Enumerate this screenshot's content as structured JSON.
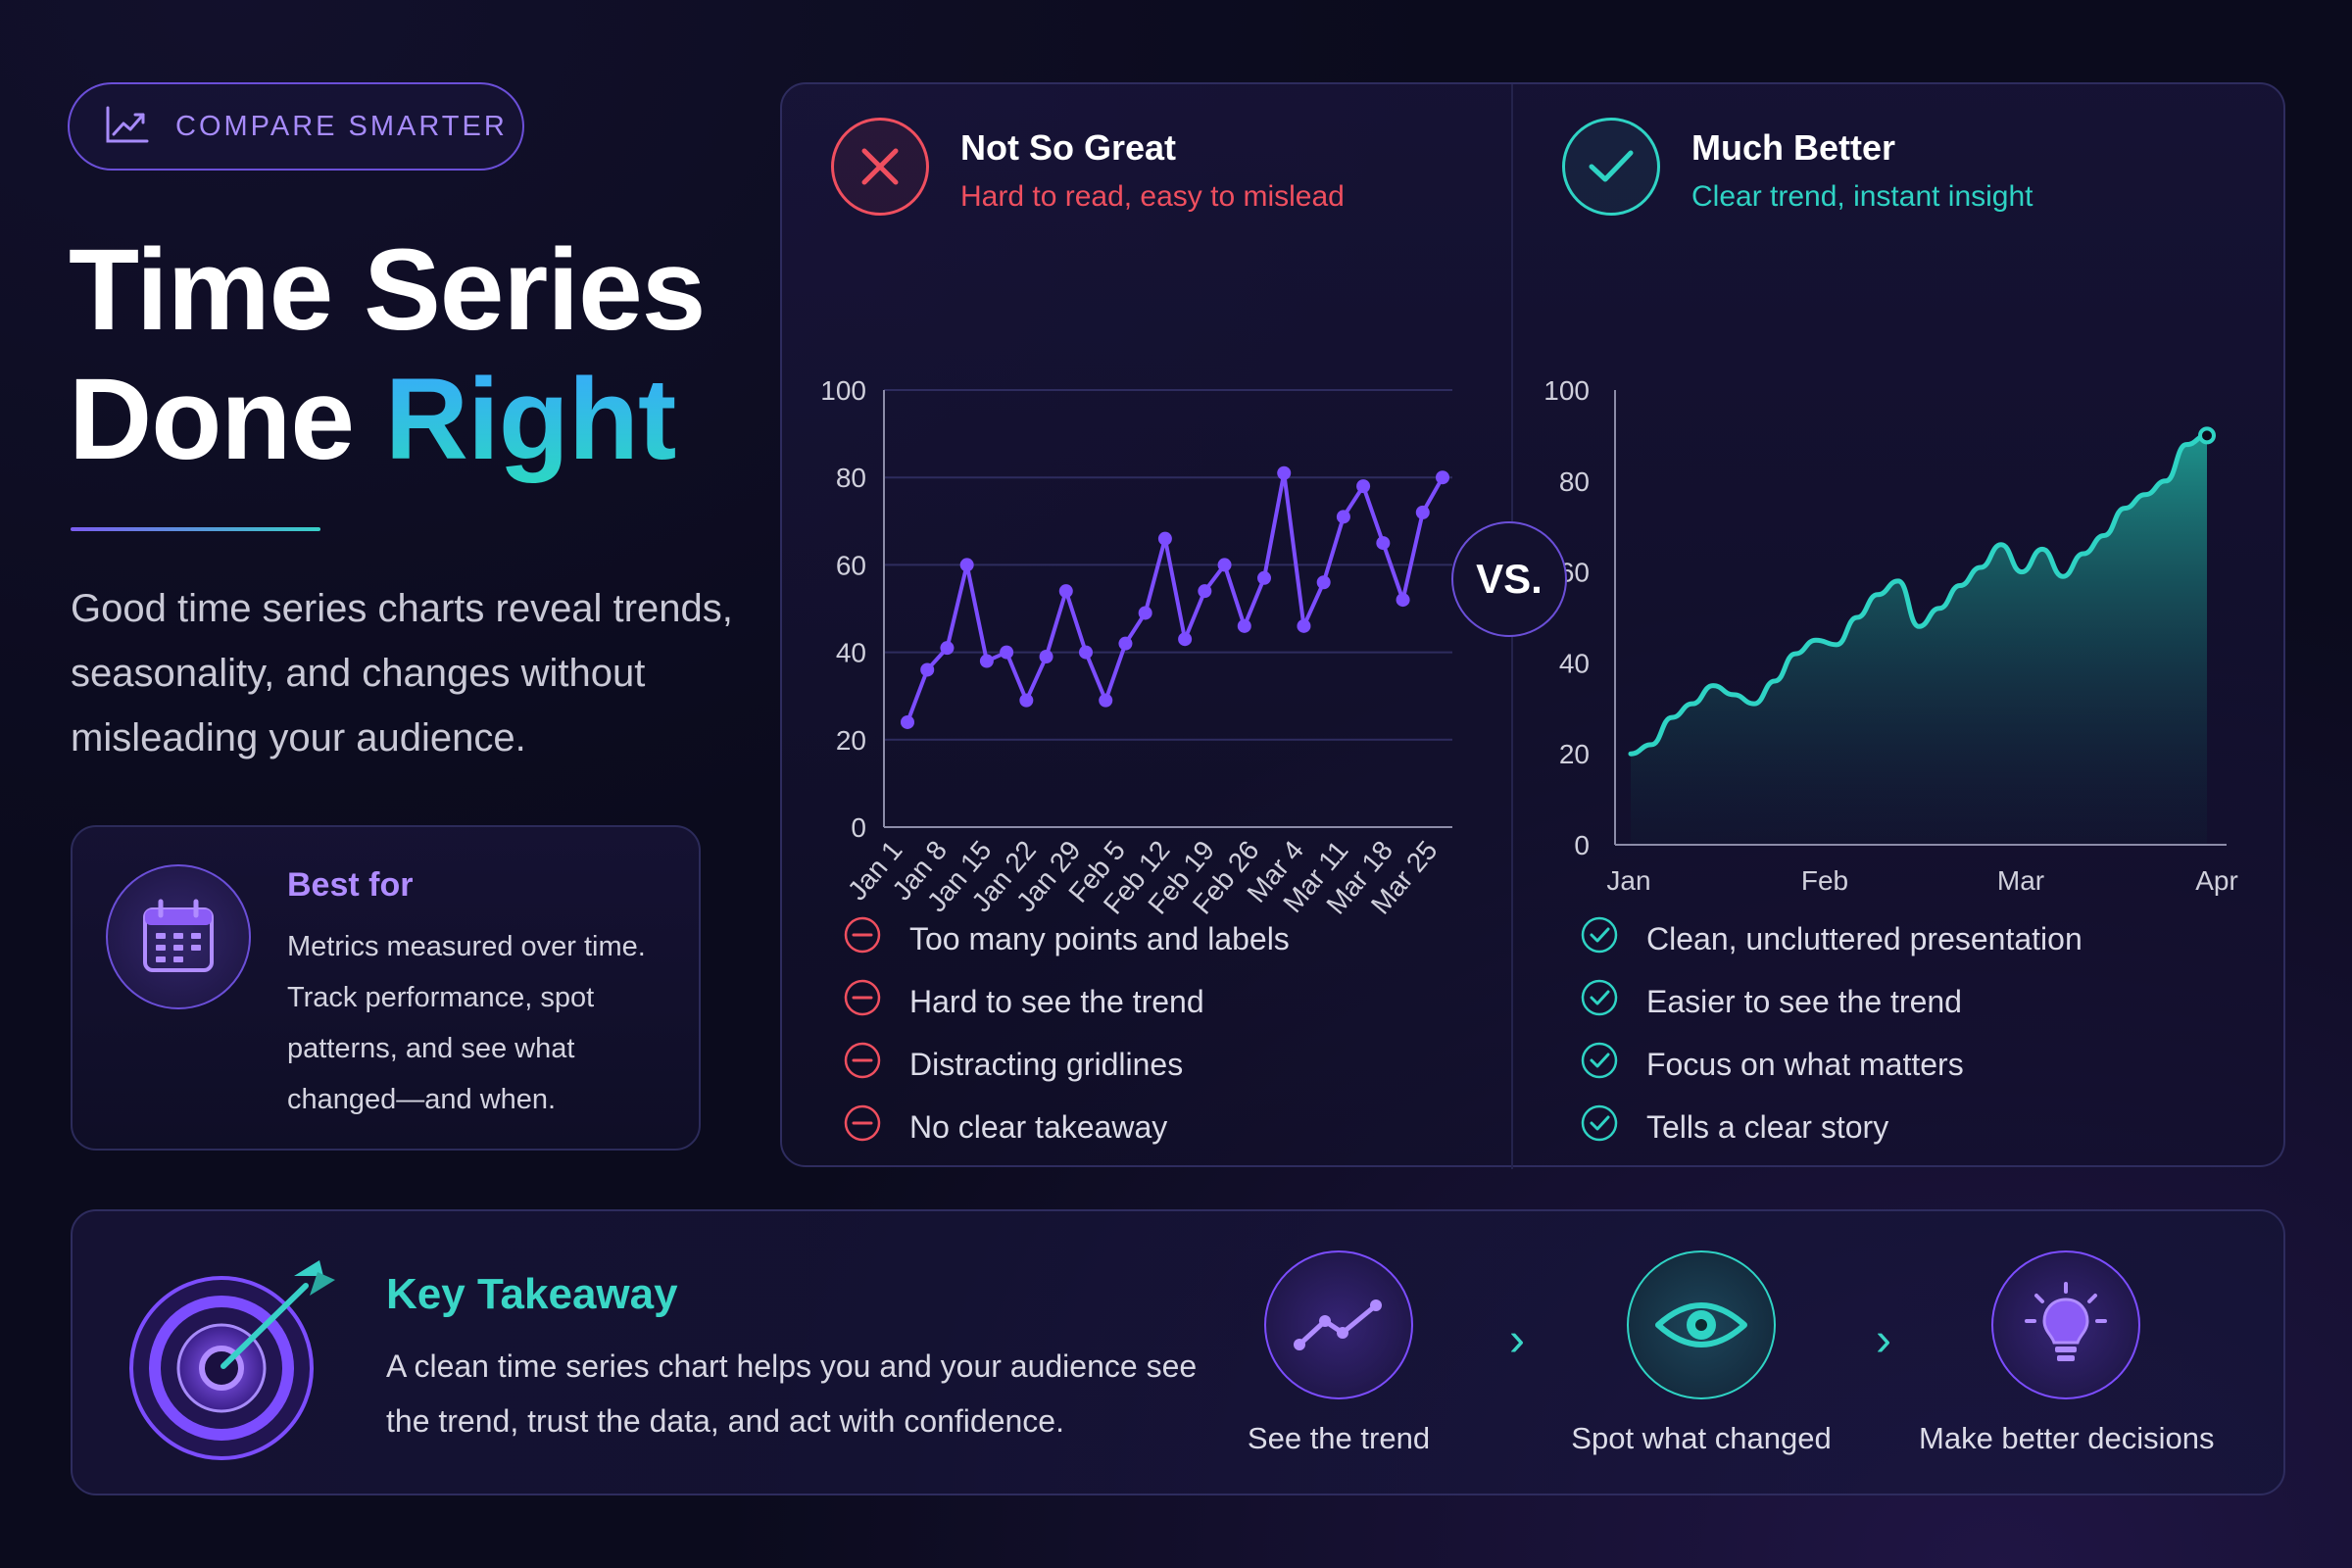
{
  "badge": {
    "label": "COMPARE SMARTER",
    "icon": "trend-chart-icon"
  },
  "headline": {
    "line1": "Time Series",
    "line2_plain": "Done ",
    "line2_accent": "Right"
  },
  "intro": "Good time series charts reveal trends, seasonality, and changes without misleading your audience.",
  "best_for": {
    "title": "Best for",
    "text": "Metrics measured over time. Track performance, spot patterns, and see what changed—and when.",
    "icon": "calendar-icon"
  },
  "vs_label": "VS.",
  "bad": {
    "title": "Not So Great",
    "subtitle": "Hard to read, easy to mislead",
    "icon": "x-icon",
    "color": "#ef4f5f",
    "points": [
      "Too many points and labels",
      "Hard to see the trend",
      "Distracting gridlines",
      "No clear takeaway"
    ]
  },
  "good": {
    "title": "Much Better",
    "subtitle": "Clear trend, instant insight",
    "icon": "check-icon",
    "color": "#2fd3c4",
    "points": [
      "Clean, uncluttered presentation",
      "Easier to see the trend",
      "Focus on what matters",
      "Tells a clear story"
    ]
  },
  "takeaway": {
    "title": "Key Takeaway",
    "text": "A clean time series chart helps you and your audience see the trend, trust the data, and act with confidence.",
    "icon": "target-icon",
    "steps": [
      {
        "label": "See the trend",
        "icon": "trend-line-icon"
      },
      {
        "label": "Spot what changed",
        "icon": "eye-icon"
      },
      {
        "label": "Make better decisions",
        "icon": "lightbulb-icon"
      }
    ]
  },
  "chart_data": [
    {
      "type": "line",
      "ylim": [
        0,
        100
      ],
      "y_ticks": [
        0,
        20,
        40,
        60,
        80,
        100
      ],
      "x_tick_labels": [
        "Jan 1",
        "Jan 8",
        "Jan 15",
        "Jan 22",
        "Jan 29",
        "Feb 5",
        "Feb 12",
        "Feb 19",
        "Feb 26",
        "Mar 4",
        "Mar 11",
        "Mar 18",
        "Mar 25"
      ],
      "grid": true,
      "markers": true,
      "color": "#7c4dff",
      "values": [
        24,
        36,
        41,
        60,
        38,
        40,
        29,
        39,
        54,
        40,
        29,
        42,
        49,
        66,
        43,
        54,
        60,
        46,
        57,
        81,
        46,
        56,
        71,
        78,
        65,
        52,
        72,
        80
      ]
    },
    {
      "type": "area",
      "ylim": [
        0,
        100
      ],
      "y_ticks": [
        0,
        20,
        40,
        60,
        80,
        100
      ],
      "x_tick_labels": [
        "Jan",
        "Feb",
        "Mar",
        "Apr"
      ],
      "grid": false,
      "color": "#2fd3c4",
      "values": [
        20,
        22,
        28,
        31,
        35,
        33,
        31,
        36,
        42,
        45,
        44,
        50,
        55,
        58,
        48,
        52,
        57,
        61,
        66,
        60,
        65,
        59,
        64,
        68,
        74,
        77,
        80,
        88,
        90
      ]
    }
  ]
}
